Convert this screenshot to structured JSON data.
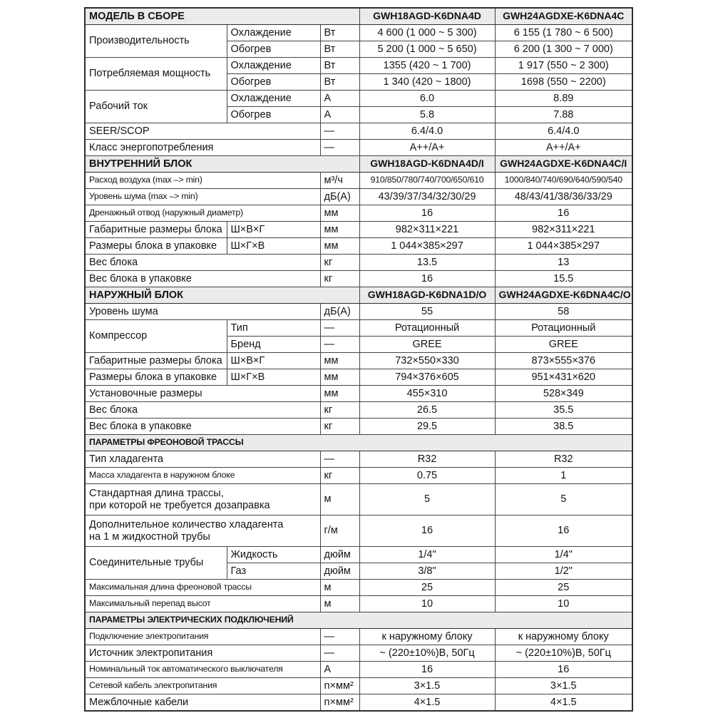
{
  "table": {
    "sections": [
      {
        "header": {
          "label": "МОДЕЛЬ В СБОРЕ",
          "models": [
            "GWH18AGD-K6DNA4D",
            "GWH24AGDXE-K6DNA4C"
          ]
        },
        "rows": [
          {
            "label": "Производительность",
            "rowspan": 2,
            "sub": "Охлаждение",
            "unit": "Вт",
            "v1": "4 600 (1 000 ~ 5 300)",
            "v2": "6 155 (1 780 ~ 6 500)"
          },
          {
            "sub": "Обогрев",
            "unit": "Вт",
            "v1": "5 200 (1 000 ~ 5 650)",
            "v2": "6 200 (1 300 ~ 7 000)"
          },
          {
            "label": "Потребляемая мощность",
            "rowspan": 2,
            "sub": "Охлаждение",
            "unit": "Вт",
            "v1": "1355 (420 ~ 1 700)",
            "v2": "1 917 (550 ~ 2 300)"
          },
          {
            "sub": "Обогрев",
            "unit": "Вт",
            "v1": "1 340 (420 ~ 1800)",
            "v2": "1698 (550 ~ 2200)"
          },
          {
            "label": "Рабочий ток",
            "rowspan": 2,
            "sub": "Охлаждение",
            "unit": "А",
            "v1": "6.0",
            "v2": "8.89"
          },
          {
            "sub": "Обогрев",
            "unit": "А",
            "v1": "5.8",
            "v2": "7.88"
          },
          {
            "label": "SEER/SCOP",
            "unit": "—",
            "v1": "6.4/4.0",
            "v2": "6.4/4.0"
          },
          {
            "label": "Класс энергопотребления",
            "unit": "—",
            "v1": "A++/A+",
            "v2": "A++/A+"
          }
        ]
      },
      {
        "header": {
          "label": "ВНУТРЕННИЙ БЛОК",
          "models": [
            "GWH18AGD-K6DNA4D/I",
            "GWH24AGDXE-K6DNA4C/I"
          ]
        },
        "rows": [
          {
            "label": "Расход воздуха (max –> min)",
            "unit": "м³/ч",
            "v1": "910/850/780/740/700/650/610",
            "v2": "1000/840/740/690/640/590/540"
          },
          {
            "label": "Уровень шума (max –> min)",
            "unit": "дБ(А)",
            "v1": "43/39/37/34/32/30/29",
            "v2": "48/43/41/38/36/33/29"
          },
          {
            "label": "Дренажный отвод (наружный диаметр)",
            "unit": "мм",
            "v1": "16",
            "v2": "16"
          },
          {
            "label": "Габаритные размеры блока",
            "sub": "Ш×В×Г",
            "unit": "мм",
            "v1": "982×311×221",
            "v2": "982×311×221"
          },
          {
            "label": "Размеры блока в упаковке",
            "sub": "Ш×Г×В",
            "unit": "мм",
            "v1": "1 044×385×297",
            "v2": "1 044×385×297"
          },
          {
            "label": "Вес блока",
            "unit": "кг",
            "v1": "13.5",
            "v2": "13"
          },
          {
            "label": "Вес блока в упаковке",
            "unit": "кг",
            "v1": "16",
            "v2": "15.5"
          }
        ]
      },
      {
        "header": {
          "label": "НАРУЖНЫЙ БЛОК",
          "models": [
            "GWH18AGD-K6DNA1D/O",
            "GWH24AGDXE-K6DNA4C/O"
          ]
        },
        "rows": [
          {
            "label": "Уровень шума",
            "unit": "дБ(А)",
            "v1": "55",
            "v2": "58"
          },
          {
            "label": "Компрессор",
            "rowspan": 2,
            "sub": "Тип",
            "unit": "—",
            "v1": "Ротационный",
            "v2": "Ротационный"
          },
          {
            "sub": "Бренд",
            "unit": "—",
            "v1": "GREE",
            "v2": "GREE"
          },
          {
            "label": "Габаритные размеры блока",
            "sub": "Ш×В×Г",
            "unit": "мм",
            "v1": "732×550×330",
            "v2": "873×555×376"
          },
          {
            "label": "Размеры блока в упаковке",
            "sub": "Ш×Г×В",
            "unit": "мм",
            "v1": "794×376×605",
            "v2": "951×431×620"
          },
          {
            "label": "Установочные размеры",
            "unit": "мм",
            "v1": "455×310",
            "v2": "528×349"
          },
          {
            "label": "Вес блока",
            "unit": "кг",
            "v1": "26.5",
            "v2": "35.5"
          },
          {
            "label": "Вес блока в упаковке",
            "unit": "кг",
            "v1": "29.5",
            "v2": "38.5"
          }
        ]
      },
      {
        "header": {
          "label": "ПАРАМЕТРЫ ФРЕОНОВОЙ ТРАССЫ"
        },
        "rows": [
          {
            "label": "Тип хладагента",
            "unit": "—",
            "v1": "R32",
            "v2": "R32"
          },
          {
            "label": "Масса хладагента в наружном блоке",
            "unit": "кг",
            "v1": "0.75",
            "v2": "1"
          },
          {
            "label": "Стандартная длина трассы,\nпри которой не требуется дозаправка",
            "tall": true,
            "unit": "м",
            "v1": "5",
            "v2": "5"
          },
          {
            "label": "Дополнительное количество хладагента\nна 1 м жидкостной трубы",
            "tall": true,
            "unit": "г/м",
            "v1": "16",
            "v2": "16"
          },
          {
            "label": "Соединительные трубы",
            "rowspan": 2,
            "sub": "Жидкость",
            "unit": "дюйм",
            "v1": "1/4\"",
            "v2": "1/4\""
          },
          {
            "sub": "Газ",
            "unit": "дюйм",
            "v1": "3/8\"",
            "v2": "1/2\""
          },
          {
            "label": "Максимальная длина фреоновой трассы",
            "unit": "м",
            "v1": "25",
            "v2": "25"
          },
          {
            "label": "Максимальный перепад высот",
            "unit": "м",
            "v1": "10",
            "v2": "10"
          }
        ]
      },
      {
        "header": {
          "label": "ПАРАМЕТРЫ ЭЛЕКТРИЧЕСКИХ ПОДКЛЮЧЕНИЙ"
        },
        "rows": [
          {
            "label": "Подключение электропитания",
            "unit": "—",
            "v1": "к наружному блоку",
            "v2": "к наружному блоку"
          },
          {
            "label": "Источник электропитания",
            "unit": "—",
            "v1": "~ (220±10%)В, 50Гц",
            "v2": "~ (220±10%)В, 50Гц"
          },
          {
            "label": "Номинальный ток автоматического выключателя",
            "unit": "А",
            "v1": "16",
            "v2": "16"
          },
          {
            "label": "Сетевой кабель электропитания",
            "unit": "n×мм²",
            "v1": "3×1.5",
            "v2": "3×1.5"
          },
          {
            "label": "Межблочные кабели",
            "unit": "n×мм²",
            "v1": "4×1.5",
            "v2": "4×1.5"
          }
        ]
      }
    ],
    "colors": {
      "section_bg": "#ebebeb",
      "border": "#454545",
      "text": "#141414"
    }
  }
}
